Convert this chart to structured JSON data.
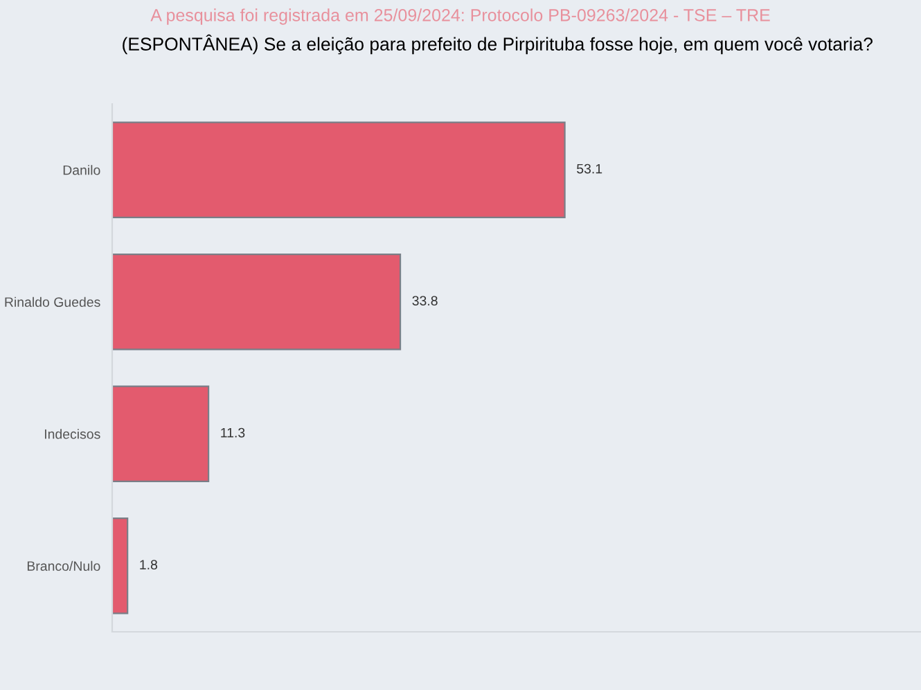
{
  "chart_data": {
    "type": "bar",
    "orientation": "horizontal",
    "subtitle": "A pesquisa foi registrada em 25/09/2024: Protocolo PB-09263/2024 - TSE – TRE",
    "title": "(ESPONTÂNEA) Se a eleição para prefeito de Pirpirituba fosse hoje, em quem você votaria?",
    "categories": [
      "Danilo",
      "Rinaldo Guedes",
      "Indecisos",
      "Branco/Nulo"
    ],
    "values": [
      53.1,
      33.8,
      11.3,
      1.8
    ],
    "color": "#e35b6e",
    "data_labels": true,
    "grid": false,
    "legend": false
  }
}
